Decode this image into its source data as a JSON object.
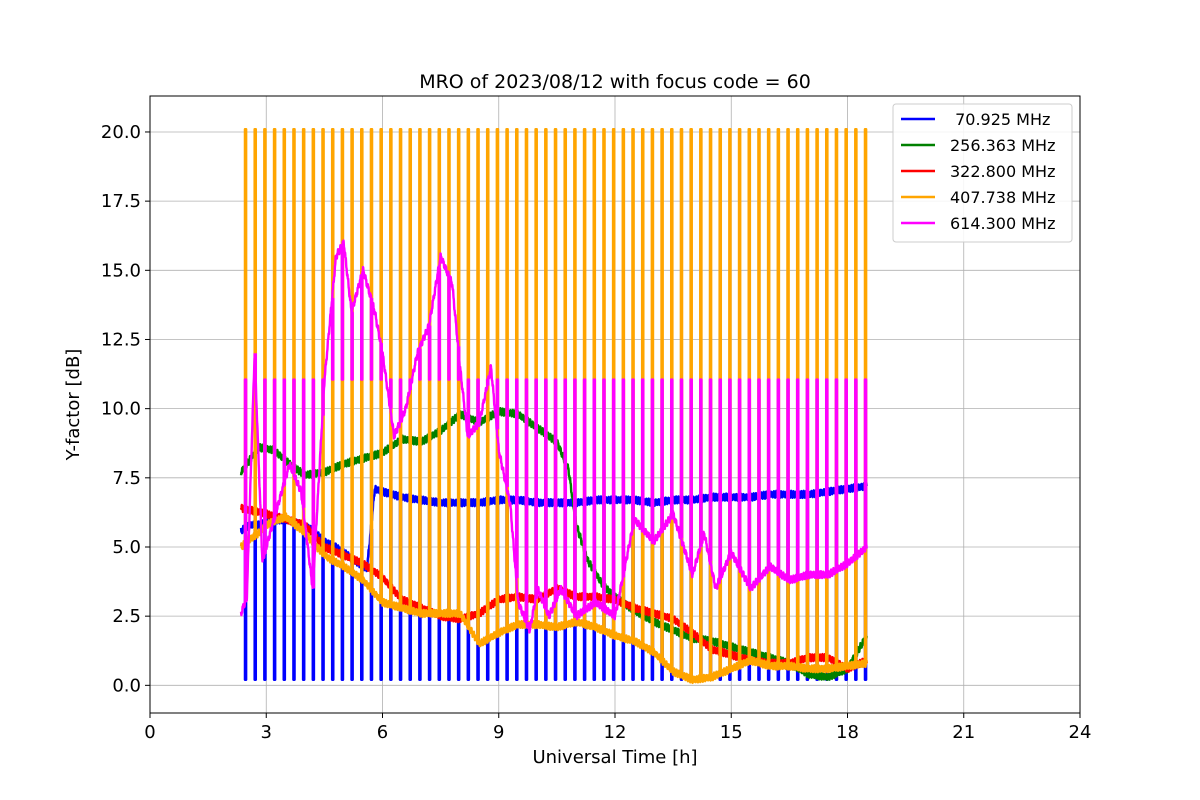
{
  "chart_data": {
    "type": "line",
    "title": "MRO of 2023/08/12 with focus code = 60",
    "xlabel": "Universal Time [h]",
    "ylabel": "Y-factor [dB]",
    "xlim": [
      0,
      24
    ],
    "ylim": [
      -1.0,
      21.3
    ],
    "x_ticks": [
      0,
      3,
      6,
      9,
      12,
      15,
      18,
      21,
      24
    ],
    "x_tick_labels": [
      "0",
      "3",
      "6",
      "9",
      "12",
      "15",
      "18",
      "21",
      "24"
    ],
    "y_ticks": [
      0.0,
      2.5,
      5.0,
      7.5,
      10.0,
      12.5,
      15.0,
      17.5,
      20.0
    ],
    "y_tick_labels": [
      "0.0",
      "2.5",
      "5.0",
      "7.5",
      "10.0",
      "12.5",
      "15.0",
      "17.5",
      "20.0"
    ],
    "grid": true,
    "legend_position": "top-right",
    "time_range": [
      2.35,
      18.5
    ],
    "spike_interval_h": 0.25,
    "series": [
      {
        "name": " 70.925 MHz",
        "color": "#0000ff",
        "spike_direction": "down",
        "spike_level": 0.2,
        "x": [
          2.35,
          2.6,
          2.8,
          3.0,
          3.5,
          3.9,
          4.2,
          4.5,
          4.8,
          5.2,
          5.6,
          5.8,
          6.0,
          6.5,
          7.0,
          7.5,
          8.0,
          8.5,
          9.0,
          9.5,
          10.0,
          10.5,
          11.0,
          11.5,
          12.0,
          12.5,
          13.0,
          13.5,
          14.0,
          14.5,
          15.0,
          15.5,
          16.0,
          16.5,
          17.0,
          17.5,
          18.0,
          18.5
        ],
        "y": [
          5.6,
          5.8,
          5.8,
          5.9,
          6.0,
          5.8,
          5.6,
          5.2,
          5.0,
          4.6,
          4.2,
          7.1,
          7.0,
          6.8,
          6.7,
          6.6,
          6.6,
          6.6,
          6.7,
          6.7,
          6.6,
          6.6,
          6.6,
          6.7,
          6.7,
          6.7,
          6.6,
          6.7,
          6.7,
          6.8,
          6.8,
          6.8,
          6.9,
          6.9,
          6.9,
          7.0,
          7.1,
          7.2
        ]
      },
      {
        "name": "256.363 MHz",
        "color": "#008000",
        "spike_direction": "none",
        "x": [
          2.35,
          2.8,
          3.2,
          3.6,
          4.0,
          4.5,
          5.0,
          5.5,
          6.0,
          6.5,
          7.0,
          7.5,
          8.0,
          8.5,
          9.0,
          9.5,
          10.0,
          10.5,
          10.8,
          11.0,
          11.3,
          11.7,
          12.0,
          12.5,
          13.0,
          13.5,
          14.0,
          14.5,
          15.0,
          15.5,
          16.0,
          16.5,
          17.0,
          17.5,
          18.0,
          18.5
        ],
        "y": [
          7.7,
          8.6,
          8.5,
          8.0,
          7.6,
          7.7,
          8.0,
          8.2,
          8.4,
          8.9,
          8.8,
          9.2,
          9.8,
          9.5,
          9.9,
          9.8,
          9.3,
          8.8,
          7.8,
          5.8,
          4.5,
          3.6,
          3.2,
          2.7,
          2.3,
          2.0,
          1.7,
          1.6,
          1.4,
          1.2,
          1.0,
          0.8,
          0.4,
          0.3,
          0.6,
          1.8
        ]
      },
      {
        "name": "322.800 MHz",
        "color": "#ff0000",
        "spike_direction": "none",
        "x": [
          2.35,
          2.7,
          3.0,
          3.5,
          4.0,
          4.5,
          5.0,
          5.5,
          6.0,
          6.5,
          7.0,
          7.5,
          8.0,
          8.5,
          9.0,
          9.5,
          10.0,
          10.5,
          11.0,
          11.5,
          12.0,
          12.5,
          13.0,
          13.5,
          14.0,
          14.5,
          15.0,
          15.5,
          16.0,
          16.5,
          17.0,
          17.5,
          18.0,
          18.5
        ],
        "y": [
          6.4,
          6.3,
          6.2,
          6.0,
          5.8,
          5.0,
          4.7,
          4.4,
          3.9,
          3.1,
          2.8,
          2.5,
          2.4,
          2.6,
          3.1,
          3.2,
          3.1,
          3.5,
          3.2,
          3.2,
          3.1,
          2.8,
          2.6,
          2.4,
          1.9,
          1.3,
          1.1,
          0.9,
          0.8,
          0.8,
          1.0,
          1.0,
          0.6,
          0.9
        ]
      },
      {
        "name": "407.738 MHz",
        "color": "#ffa500",
        "spike_direction": "up",
        "spike_level": 20.1,
        "x": [
          2.35,
          2.6,
          2.8,
          3.0,
          3.5,
          4.0,
          4.3,
          4.6,
          5.0,
          5.5,
          6.0,
          6.5,
          7.0,
          7.5,
          8.0,
          8.5,
          9.0,
          9.5,
          10.0,
          10.5,
          11.0,
          11.5,
          12.0,
          12.5,
          13.0,
          13.5,
          14.0,
          14.5,
          15.0,
          15.5,
          16.0,
          16.5,
          17.0,
          17.5,
          18.0,
          18.5
        ],
        "y": [
          5.0,
          5.3,
          5.5,
          5.8,
          6.1,
          5.5,
          5.0,
          4.6,
          4.3,
          3.8,
          3.0,
          2.8,
          2.6,
          2.6,
          2.6,
          1.5,
          1.9,
          2.2,
          2.2,
          2.1,
          2.3,
          2.1,
          1.8,
          1.6,
          1.2,
          0.5,
          0.2,
          0.3,
          0.6,
          0.9,
          0.7,
          0.7,
          0.6,
          0.6,
          0.7,
          0.8
        ]
      },
      {
        "name": "614.300 MHz",
        "color": "#ff00ff",
        "spike_direction": "up",
        "spike_level": 11.05,
        "x": [
          2.35,
          2.5,
          2.7,
          2.9,
          3.2,
          3.6,
          3.9,
          4.2,
          4.5,
          4.8,
          5.0,
          5.2,
          5.5,
          5.8,
          6.0,
          6.3,
          6.6,
          6.9,
          7.2,
          7.5,
          7.8,
          8.0,
          8.2,
          8.5,
          8.8,
          9.0,
          9.3,
          9.5,
          9.8,
          10.0,
          10.3,
          10.6,
          11.0,
          11.5,
          12.0,
          12.5,
          13.0,
          13.5,
          14.0,
          14.3,
          14.6,
          15.0,
          15.5,
          16.0,
          16.5,
          17.0,
          17.5,
          18.0,
          18.5
        ],
        "y": [
          2.6,
          3.2,
          12.0,
          4.5,
          6.0,
          8.0,
          7.0,
          3.5,
          11.0,
          15.5,
          16.0,
          13.5,
          15.0,
          13.5,
          12.0,
          9.0,
          10.0,
          12.0,
          13.0,
          15.5,
          14.5,
          11.5,
          9.0,
          9.5,
          11.5,
          8.5,
          6.5,
          3.0,
          2.0,
          3.5,
          2.5,
          3.5,
          2.5,
          3.0,
          2.5,
          6.0,
          5.2,
          6.2,
          4.0,
          5.5,
          3.5,
          4.8,
          3.5,
          4.3,
          3.8,
          4.0,
          4.0,
          4.4,
          5.0
        ]
      }
    ]
  }
}
